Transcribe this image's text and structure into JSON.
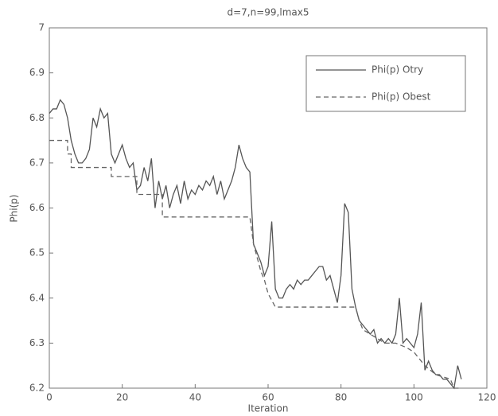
{
  "chart_data": {
    "type": "line",
    "title": "d=7,n=99,lmax5",
    "x_label": "Iteration",
    "y_label": "Phi(p)",
    "xlim": [
      0,
      120
    ],
    "ylim": [
      6.2,
      7
    ],
    "xticks": [
      0,
      20,
      40,
      60,
      80,
      100,
      120
    ],
    "yticks": [
      6.2,
      6.3,
      6.4,
      6.5,
      6.6,
      6.7,
      6.8,
      6.9,
      7
    ],
    "legend": "upper right",
    "series": [
      {
        "name": "Phi(p) Otry",
        "color": "#555555",
        "dash": "solid",
        "x": [
          0,
          1,
          2,
          3,
          4,
          5,
          6,
          7,
          8,
          9,
          10,
          11,
          12,
          13,
          14,
          15,
          16,
          17,
          18,
          19,
          20,
          21,
          22,
          23,
          24,
          25,
          26,
          27,
          28,
          29,
          30,
          31,
          32,
          33,
          34,
          35,
          36,
          37,
          38,
          39,
          40,
          41,
          42,
          43,
          44,
          45,
          46,
          47,
          48,
          49,
          50,
          51,
          52,
          53,
          54,
          55,
          56,
          57,
          58,
          59,
          60,
          61,
          62,
          63,
          64,
          65,
          66,
          67,
          68,
          69,
          70,
          71,
          72,
          73,
          74,
          75,
          76,
          77,
          78,
          79,
          80,
          81,
          82,
          83,
          84,
          85,
          86,
          87,
          88,
          89,
          90,
          91,
          92,
          93,
          94,
          95,
          96,
          97,
          98,
          99,
          100,
          101,
          102,
          103,
          104,
          105,
          106,
          107,
          108,
          109,
          110,
          111,
          112,
          113
        ],
        "values": [
          6.81,
          6.82,
          6.82,
          6.84,
          6.83,
          6.8,
          6.75,
          6.72,
          6.7,
          6.7,
          6.71,
          6.73,
          6.8,
          6.78,
          6.82,
          6.8,
          6.81,
          6.72,
          6.7,
          6.72,
          6.74,
          6.71,
          6.69,
          6.7,
          6.64,
          6.65,
          6.69,
          6.66,
          6.71,
          6.6,
          6.66,
          6.62,
          6.65,
          6.6,
          6.63,
          6.65,
          6.61,
          6.66,
          6.62,
          6.64,
          6.63,
          6.65,
          6.64,
          6.66,
          6.65,
          6.67,
          6.63,
          6.66,
          6.62,
          6.64,
          6.66,
          6.69,
          6.74,
          6.71,
          6.69,
          6.68,
          6.52,
          6.5,
          6.48,
          6.45,
          6.47,
          6.57,
          6.42,
          6.4,
          6.4,
          6.42,
          6.43,
          6.42,
          6.44,
          6.43,
          6.44,
          6.44,
          6.45,
          6.46,
          6.47,
          6.47,
          6.44,
          6.45,
          6.42,
          6.39,
          6.45,
          6.61,
          6.59,
          6.42,
          6.38,
          6.35,
          6.34,
          6.33,
          6.32,
          6.33,
          6.3,
          6.31,
          6.3,
          6.31,
          6.3,
          6.32,
          6.4,
          6.3,
          6.31,
          6.3,
          6.29,
          6.32,
          6.39,
          6.24,
          6.26,
          6.24,
          6.23,
          6.23,
          6.22,
          6.22,
          6.21,
          6.2,
          6.25,
          6.22
        ]
      },
      {
        "name": "Phi(p) Obest",
        "color": "#666666",
        "dash": "dashed",
        "x": [
          0,
          5,
          5,
          6,
          6,
          17,
          17,
          24,
          24,
          31,
          31,
          55,
          56,
          57,
          58,
          59,
          60,
          62,
          84,
          85,
          86,
          88,
          90,
          92,
          95,
          98,
          100,
          103,
          106,
          110,
          111,
          113
        ],
        "values": [
          6.75,
          6.75,
          6.72,
          6.72,
          6.69,
          6.69,
          6.67,
          6.67,
          6.63,
          6.63,
          6.58,
          6.58,
          6.52,
          6.49,
          6.46,
          6.44,
          6.41,
          6.38,
          6.38,
          6.35,
          6.33,
          6.32,
          6.31,
          6.3,
          6.3,
          6.29,
          6.28,
          6.25,
          6.23,
          6.22,
          6.2,
          6.2
        ]
      }
    ]
  }
}
